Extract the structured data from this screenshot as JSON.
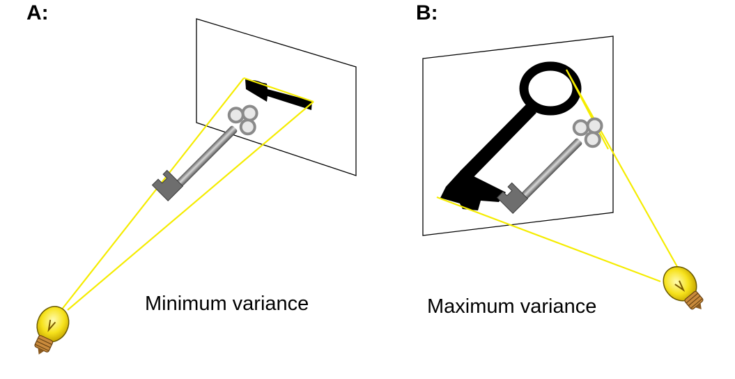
{
  "panels": {
    "a": {
      "label": "A:",
      "caption": "Minimum variance"
    },
    "b": {
      "label": "B:",
      "caption": "Maximum variance"
    }
  },
  "colors": {
    "ray": "#f5ec00",
    "bulb_glass": "#f7e82a",
    "bulb_base": "#c98a3c",
    "key_metal": "#8a8a8a",
    "shadow": "#000000",
    "screen_outline": "#000000"
  },
  "icons": [
    "light-bulb-icon",
    "key-icon",
    "key-shadow"
  ]
}
